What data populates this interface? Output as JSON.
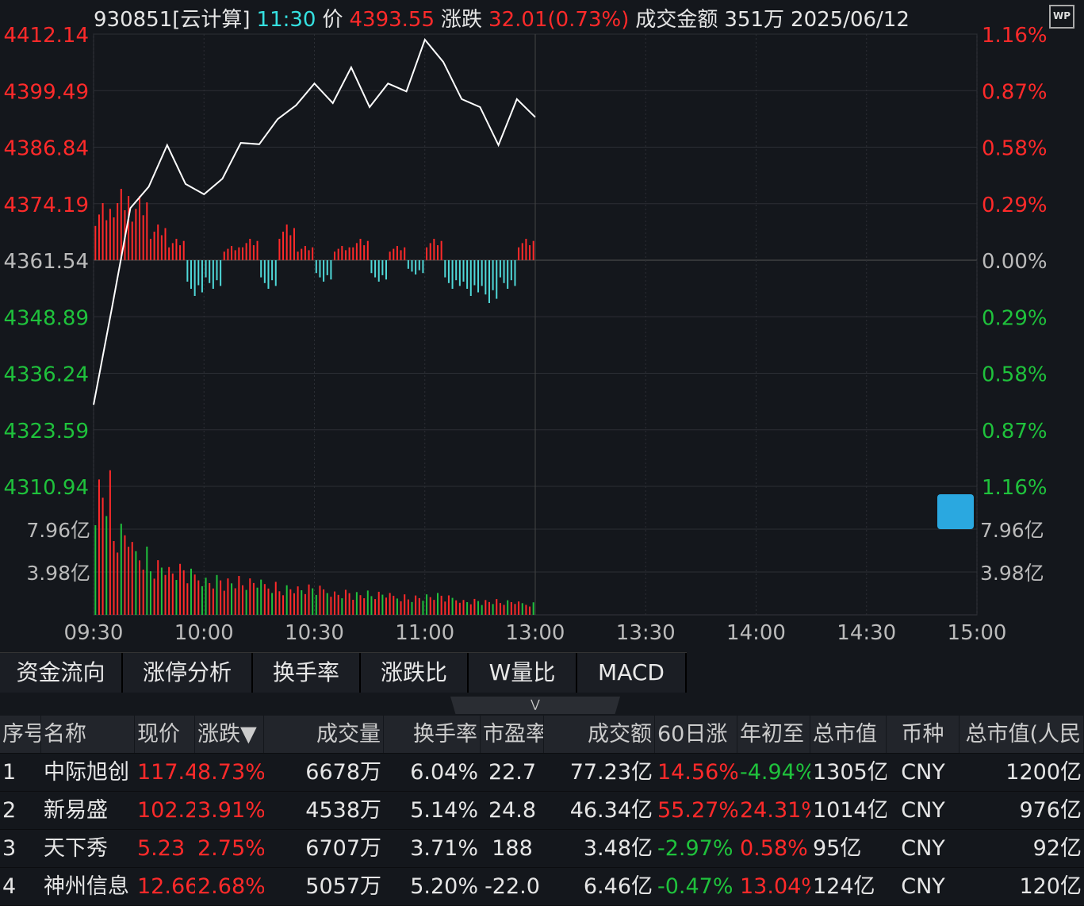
{
  "header": {
    "code": "930851[云计算]",
    "time": "11:30",
    "price_label": "价",
    "price": "4393.55",
    "change_label": "涨跌",
    "change": "32.01(0.73%)",
    "amount_label": "成交金额",
    "amount": "351万",
    "date": "2025/06/12",
    "logo": "WP"
  },
  "colors": {
    "up": "#ff2a2a",
    "down": "#1fc23c",
    "bar_down": "#4fd8d8",
    "time": "#35e0e0",
    "line": "#ffffff"
  },
  "price_axis": {
    "left": [
      "4412.14",
      "4399.49",
      "4386.84",
      "4374.19",
      "4361.54",
      "4348.89",
      "4336.24",
      "4323.59",
      "4310.94"
    ],
    "right": [
      "1.16%",
      "0.87%",
      "0.58%",
      "0.29%",
      "0.00%",
      "0.29%",
      "0.58%",
      "0.87%",
      "1.16%"
    ],
    "base": 4361.54,
    "max": 4412.14,
    "min": 4310.94
  },
  "volume_axis": {
    "left": [
      "7.96亿",
      "3.98亿"
    ],
    "right": [
      "7.96亿",
      "3.98亿"
    ],
    "max": 11.94
  },
  "time_axis": [
    "09:30",
    "10:00",
    "10:30",
    "11:00",
    "13:00",
    "13:30",
    "14:00",
    "14:30",
    "15:00"
  ],
  "chart_data": {
    "type": "line",
    "x_minutes_step": 5,
    "price": [
      4329.2,
      4350.9,
      4373.2,
      4378.0,
      4387.3,
      4378.6,
      4376.3,
      4379.8,
      4387.8,
      4387.5,
      4393.1,
      4396.2,
      4401.1,
      4396.7,
      4404.7,
      4395.8,
      4401.1,
      4399.3,
      4410.9,
      4405.9,
      4397.6,
      4395.8,
      4387.3,
      4397.6,
      4393.55
    ],
    "volume": [
      11.9,
      7.5,
      6.0,
      4.8,
      4.2,
      3.8,
      3.5,
      3.2,
      3.0,
      2.9,
      2.6,
      2.5,
      2.4,
      2.2,
      2.0,
      1.9,
      1.8,
      1.7,
      1.8,
      1.6,
      1.4,
      1.3,
      1.2,
      1.1
    ],
    "breadth": [
      8,
      10,
      9,
      5,
      3,
      -5,
      -4,
      2,
      3,
      -4,
      5,
      2,
      -3,
      2,
      3,
      -3,
      2,
      -2,
      3,
      -4,
      -5,
      -6,
      -4,
      3
    ]
  },
  "tabs": [
    "资金流向",
    "涨停分析",
    "换手率",
    "涨跌比",
    "W量比",
    "MACD"
  ],
  "table": {
    "columns": [
      "序号",
      "名称",
      "现价",
      "涨跌▼",
      "成交量",
      "换手率",
      "市盈率",
      "成交额",
      "60日涨",
      "年初至",
      "总市值",
      "币种",
      "总市值(人民"
    ],
    "rows": [
      [
        "1",
        "中际旭创",
        "117.4",
        "8.73%",
        "6678万",
        "6.04%",
        "22.7",
        "77.23亿",
        "14.56%",
        "-4.94%",
        "1305亿",
        "CNY",
        "1200亿"
      ],
      [
        "2",
        "新易盛",
        "102.2",
        "3.91%",
        "4538万",
        "5.14%",
        "24.8",
        "46.34亿",
        "55.27%",
        "24.31%",
        "1014亿",
        "CNY",
        "976亿"
      ],
      [
        "3",
        "天下秀",
        "5.23",
        "2.75%",
        "6707万",
        "3.71%",
        "188",
        "3.48亿",
        "-2.97%",
        "0.58%",
        "95亿",
        "CNY",
        "92亿"
      ],
      [
        "4",
        "神州信息",
        "12.66",
        "2.68%",
        "5057万",
        "5.20%",
        "-22.0",
        "6.46亿",
        "-0.47%",
        "13.04%",
        "124亿",
        "CNY",
        "120亿"
      ]
    ]
  }
}
